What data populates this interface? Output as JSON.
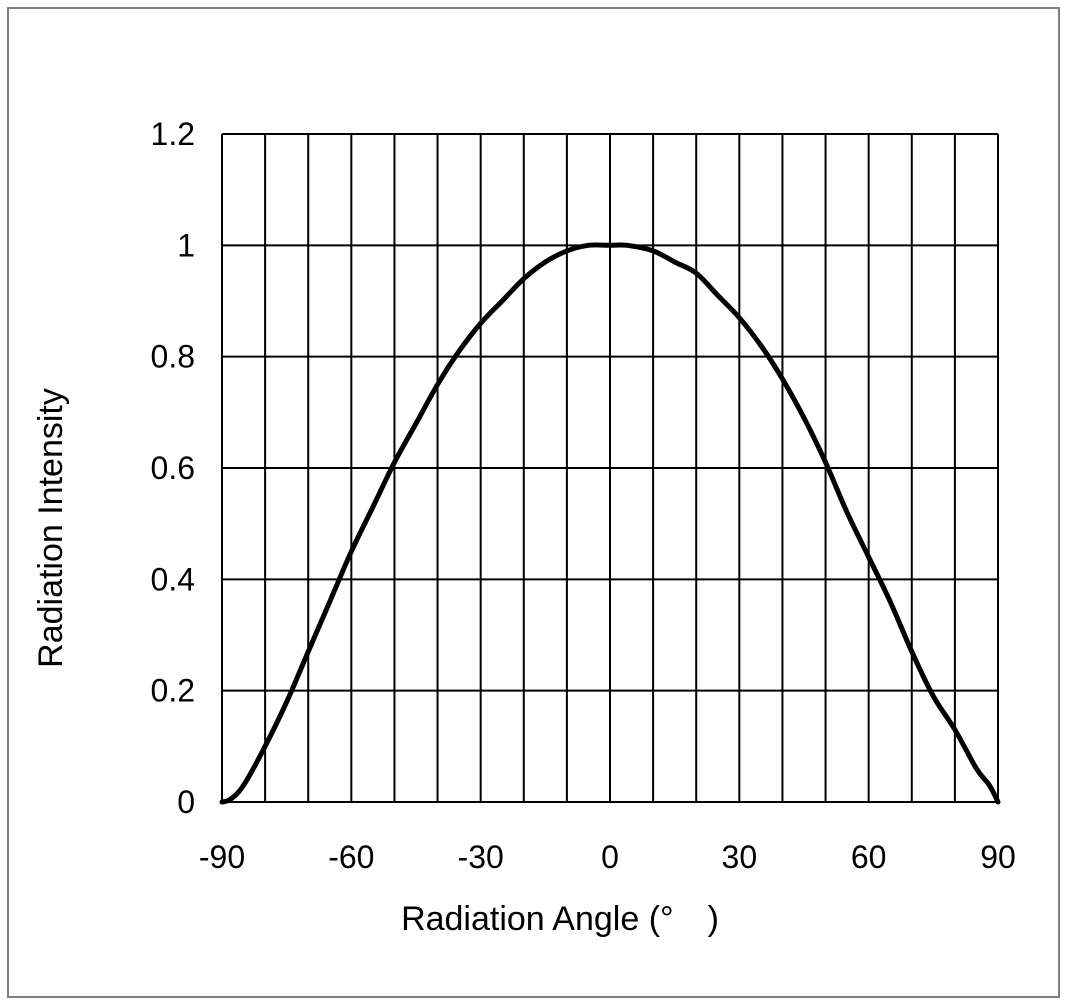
{
  "chart_data": {
    "type": "line",
    "xlabel": "Radiation Angle (°　)",
    "ylabel": "Radiation Intensity",
    "xlim": [
      -90,
      90
    ],
    "ylim": [
      0,
      1.2
    ],
    "x_ticks": [
      -90,
      -60,
      -30,
      0,
      30,
      60,
      90
    ],
    "x_tick_labels": [
      "-90",
      "-60",
      "-30",
      "0",
      "30",
      "60",
      "90"
    ],
    "x_grid_step": 10,
    "y_ticks": [
      0,
      0.2,
      0.4,
      0.6,
      0.8,
      1.0,
      1.2
    ],
    "y_tick_labels": [
      "0",
      "0.2",
      "0.4",
      "0.6",
      "0.8",
      "1",
      "1.2"
    ],
    "grid": true,
    "line_color": "#000000",
    "series": [
      {
        "x": [
          -90,
          -88,
          -85,
          -80,
          -75,
          -70,
          -65,
          -60,
          -55,
          -50,
          -45,
          -40,
          -35,
          -30,
          -25,
          -20,
          -15,
          -10,
          -5,
          0,
          4,
          10,
          15,
          20,
          25,
          30,
          35,
          40,
          45,
          50,
          55,
          60,
          65,
          70,
          75,
          80,
          85,
          88,
          90
        ],
        "values": [
          0.0,
          0.005,
          0.03,
          0.1,
          0.18,
          0.27,
          0.36,
          0.45,
          0.53,
          0.61,
          0.68,
          0.75,
          0.81,
          0.86,
          0.9,
          0.94,
          0.97,
          0.99,
          1.0,
          1.0,
          1.0,
          0.99,
          0.97,
          0.95,
          0.91,
          0.87,
          0.82,
          0.76,
          0.69,
          0.61,
          0.52,
          0.44,
          0.36,
          0.27,
          0.19,
          0.13,
          0.06,
          0.03,
          0.0
        ]
      }
    ]
  }
}
